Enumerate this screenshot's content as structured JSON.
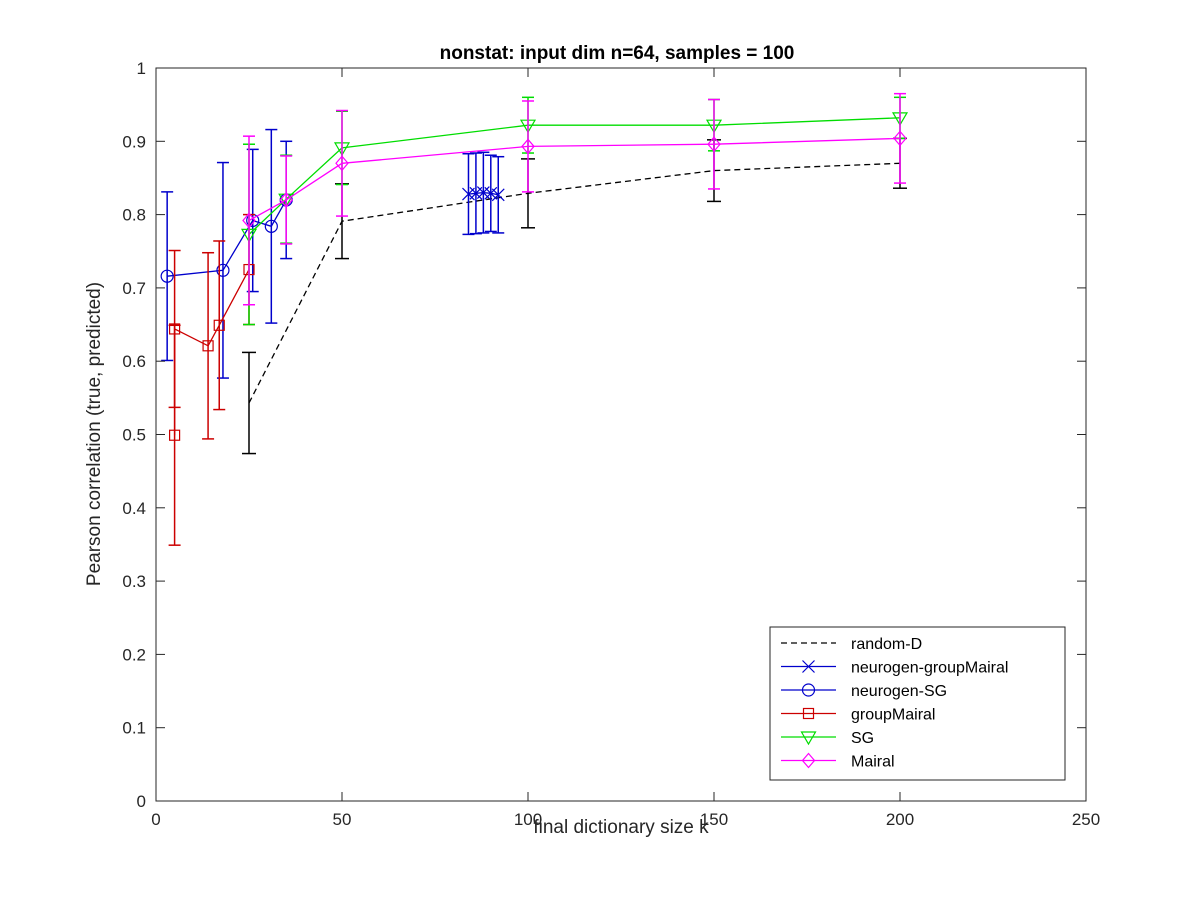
{
  "chart_data": {
    "type": "line",
    "title": "nonstat: input dim n=64, samples = 100",
    "xlabel": "final dictionary size k",
    "ylabel": "Pearson correlation (true, predicted)",
    "xlim": [
      0,
      250
    ],
    "ylim": [
      0,
      1
    ],
    "xticks": [
      0,
      50,
      100,
      150,
      200,
      250
    ],
    "yticks": [
      0,
      0.1,
      0.2,
      0.3,
      0.4,
      0.5,
      0.6,
      0.7,
      0.8,
      0.9,
      1
    ],
    "xtick_labels": [
      "0",
      "50",
      "100",
      "150",
      "200",
      "250"
    ],
    "ytick_labels": [
      "0",
      "0.1",
      "0.2",
      "0.3",
      "0.4",
      "0.5",
      "0.6",
      "0.7",
      "0.8",
      "0.9",
      "1"
    ],
    "grid": false,
    "legend_position": "bottom-right",
    "series": [
      {
        "name": "random-D",
        "color": "#000000",
        "dash": "dashed",
        "marker": "none",
        "points": [
          {
            "x": 25,
            "y": 0.543,
            "err": 0.069
          },
          {
            "x": 50,
            "y": 0.791,
            "err": 0.051
          },
          {
            "x": 100,
            "y": 0.829,
            "err": 0.047
          },
          {
            "x": 150,
            "y": 0.86,
            "err": 0.042
          },
          {
            "x": 200,
            "y": 0.87,
            "err": 0.034
          }
        ]
      },
      {
        "name": "neurogen-groupMairal",
        "color": "#0000cc",
        "dash": "solid",
        "marker": "x",
        "points": [
          {
            "x": 84,
            "y": 0.828,
            "err": 0.055
          },
          {
            "x": 86,
            "y": 0.829,
            "err": 0.055
          },
          {
            "x": 88,
            "y": 0.83,
            "err": 0.055
          },
          {
            "x": 90,
            "y": 0.829,
            "err": 0.052
          },
          {
            "x": 92,
            "y": 0.827,
            "err": 0.052
          }
        ]
      },
      {
        "name": "neurogen-SG",
        "color": "#0000cc",
        "dash": "solid",
        "marker": "o",
        "points": [
          {
            "x": 3,
            "y": 0.716,
            "err": 0.115
          },
          {
            "x": 18,
            "y": 0.724,
            "err": 0.147
          },
          {
            "x": 26,
            "y": 0.792,
            "err": 0.097
          },
          {
            "x": 31,
            "y": 0.784,
            "err": 0.132
          },
          {
            "x": 35,
            "y": 0.82,
            "err": 0.08
          }
        ]
      },
      {
        "name": "groupMairal",
        "color": "#cc0000",
        "dash": "solid",
        "marker": "square",
        "points": [
          {
            "x": 5,
            "y": 0.499,
            "err": 0.15
          },
          {
            "x": 5,
            "y": 0.644,
            "err": 0.107
          },
          {
            "x": 14,
            "y": 0.621,
            "err": 0.127
          },
          {
            "x": 17,
            "y": 0.649,
            "err": 0.115
          },
          {
            "x": 25,
            "y": 0.725,
            "err": 0.075
          }
        ]
      },
      {
        "name": "SG",
        "color": "#00dd00",
        "dash": "solid",
        "marker": "triangle-down",
        "points": [
          {
            "x": 25,
            "y": 0.773,
            "err": 0.123
          },
          {
            "x": 35,
            "y": 0.821,
            "err": 0.06
          },
          {
            "x": 50,
            "y": 0.891,
            "err": 0.05
          },
          {
            "x": 100,
            "y": 0.922,
            "err": 0.038
          },
          {
            "x": 150,
            "y": 0.922,
            "err": 0.035
          },
          {
            "x": 200,
            "y": 0.932,
            "err": 0.028
          }
        ]
      },
      {
        "name": "Mairal",
        "color": "#ff00ff",
        "dash": "solid",
        "marker": "diamond",
        "points": [
          {
            "x": 25,
            "y": 0.792,
            "err": 0.115
          },
          {
            "x": 35,
            "y": 0.82,
            "err": 0.06
          },
          {
            "x": 50,
            "y": 0.87,
            "err": 0.072
          },
          {
            "x": 100,
            "y": 0.893,
            "err": 0.062
          },
          {
            "x": 150,
            "y": 0.896,
            "err": 0.061
          },
          {
            "x": 200,
            "y": 0.904,
            "err": 0.061
          }
        ]
      }
    ]
  }
}
